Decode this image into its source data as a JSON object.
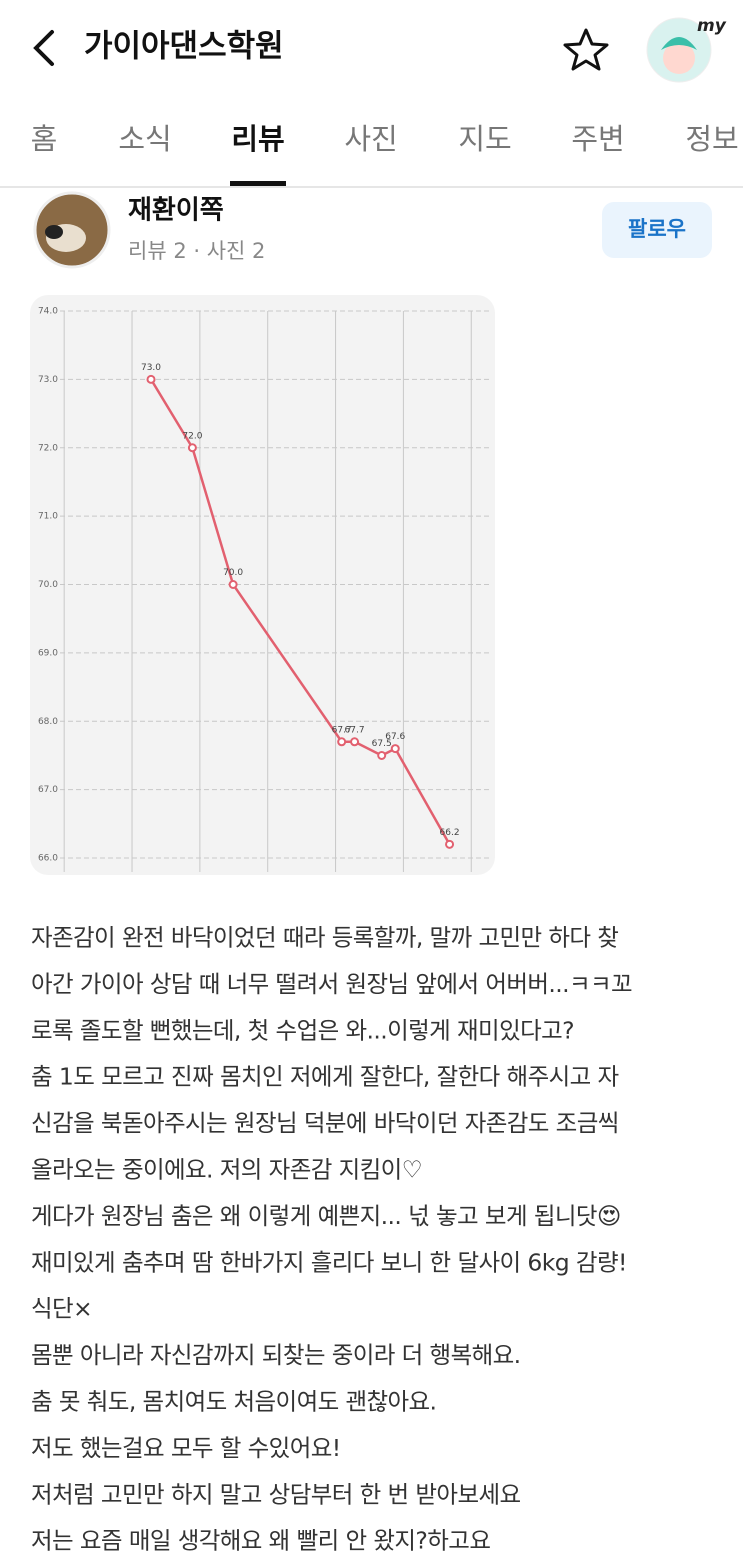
{
  "header": {
    "title": "가이아댄스학원",
    "badge": "my"
  },
  "tabs": [
    "홈",
    "소식",
    "리뷰",
    "사진",
    "지도",
    "주변",
    "정보"
  ],
  "reviewer": {
    "name": "재환이쪽",
    "stats": "리뷰 2 · 사진 2",
    "follow": "팔로우"
  },
  "chart_data": {
    "type": "line",
    "x": [
      1.28,
      1.89,
      2.49,
      4.09,
      4.28,
      4.68,
      4.88,
      5.68
    ],
    "xlim": [
      -0.43,
      6.35
    ],
    "xgrid": [
      0,
      1,
      2,
      3,
      4,
      5,
      6
    ],
    "series": [
      {
        "color": "#e2606f",
        "values": [
          73.0,
          72.0,
          70.0,
          67.7,
          67.7,
          67.5,
          67.6,
          66.2
        ],
        "value_labels": [
          "73.0",
          "72.0",
          "70.0",
          "67.7",
          "67.7",
          "67.5",
          "67.6",
          "66.2"
        ]
      }
    ],
    "ylim": [
      66,
      74
    ],
    "yticks": [
      {
        "value": 66,
        "label": "66.0"
      },
      {
        "value": 67,
        "label": "67.0"
      },
      {
        "value": 68,
        "label": "68.0"
      },
      {
        "value": 69,
        "label": "69.0"
      },
      {
        "value": 70,
        "label": "70.0"
      },
      {
        "value": 71,
        "label": "71.0"
      },
      {
        "value": 72,
        "label": "72.0"
      },
      {
        "value": 73,
        "label": "73.0"
      },
      {
        "value": 74,
        "label": "74.0"
      }
    ],
    "grid": true
  },
  "review": [
    "자존감이 완전 바닥이었던 때라 등록할까, 말까 고민만 하다 찾",
    "아간 가이아 상담 때 너무 떨려서 원장님 앞에서 어버버...ㅋㅋ꼬",
    "로록 졸도할 뻔했는데, 첫 수업은 와...이렇게 재미있다고?",
    "춤 1도 모르고 진짜 몸치인 저에게 잘한다, 잘한다 해주시고 자",
    "신감을 북돋아주시는 원장님 덕분에 바닥이던 자존감도 조금씩",
    "올라오는 중이에요. 저의 자존감 지킴이♡",
    "게다가 원장님 춤은 왜 이렇게 예쁜지... 넋 놓고 보게 됩니닷😍",
    "재미있게 춤추며 땀 한바가지 흘리다 보니 한 달사이 6kg 감량!",
    "식단×",
    "몸뿐 아니라 자신감까지 되찾는 중이라 더 행복해요.",
    "춤 못 춰도, 몸치여도 처음이여도 괜찮아요.",
    "저도 했는걸요 모두 할 수있어요!",
    "저처럼 고민만 하지 말고 상담부터 한 번 받아보세요",
    "저는 요즘 매일 생각해요 왜 빨리 안 왔지?하고요"
  ]
}
